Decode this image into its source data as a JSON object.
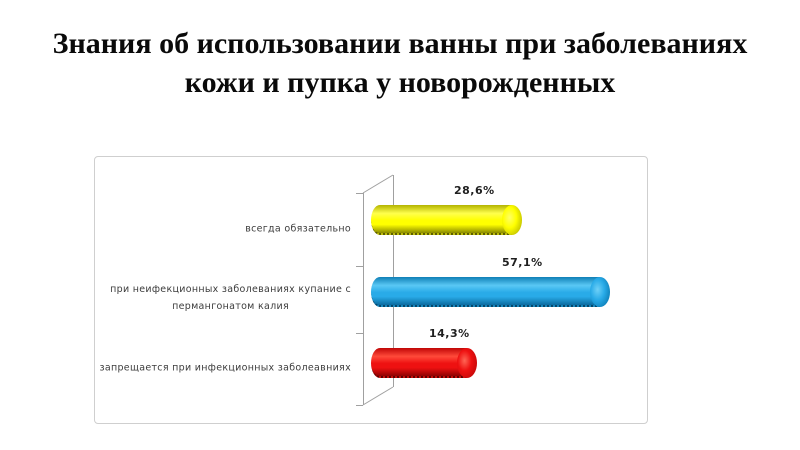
{
  "slide": {
    "title_line1": "Знания об использовании ванны при заболеваниях",
    "title_line2": "кожи и пупка у новорожденных"
  },
  "chart_data": {
    "type": "bar",
    "subtype": "3d-cylinder-horizontal",
    "title": "Знания об использовании ванны при заболеваниях кожи и пупка у новорожденных",
    "categories": [
      "всегда обязательно",
      "при неифекционных  заболеваниях купание с\nпермангонатом калия",
      "запрещается при инфекционных  заболеавниях"
    ],
    "values": [
      28.6,
      57.1,
      14.3
    ],
    "data_labels": [
      "28,6%",
      "57,1%",
      "14,3%"
    ],
    "xlim": [
      0,
      60
    ],
    "grid": false,
    "legend": false,
    "xlabel": "",
    "ylabel": "",
    "bar_colors": [
      {
        "name": "yellow",
        "top": "#b3b300",
        "light": "#ffff4d",
        "main": "#ffff00",
        "bottom": "#8a8a00",
        "edge": "#5e5e00",
        "cap_light": "#ffff66",
        "cap_dark": "#cccc00"
      },
      {
        "name": "blue",
        "top": "#0f7fb6",
        "light": "#5ac8f5",
        "main": "#29abe8",
        "bottom": "#0a6ba0",
        "edge": "#05476b",
        "cap_light": "#6fd0f7",
        "cap_dark": "#1286c0"
      },
      {
        "name": "red",
        "top": "#c00606",
        "light": "#ff4a3a",
        "main": "#ee1111",
        "bottom": "#8f0202",
        "edge": "#5e0000",
        "cap_light": "#ff6655",
        "cap_dark": "#cc0a0a"
      }
    ],
    "axis_line_color": "#a0a0a0"
  }
}
